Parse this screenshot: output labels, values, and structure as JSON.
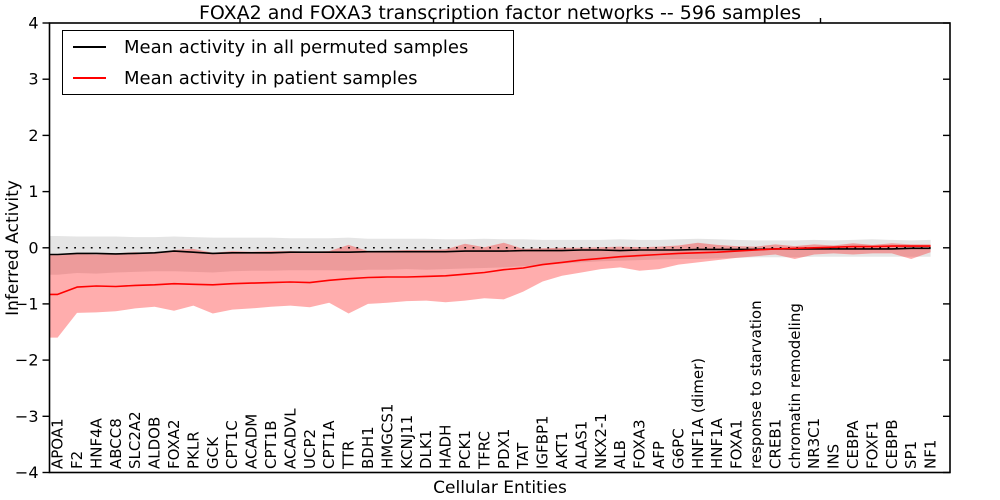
{
  "chart_data": {
    "type": "line",
    "title": "FOXA2 and FOXA3 transcription factor networks -- 596 samples",
    "xlabel": "Cellular Entities",
    "ylabel": "Inferred Activity",
    "ylim": [
      -4,
      4
    ],
    "yticks": [
      -4,
      -3,
      -2,
      -1,
      0,
      1,
      2,
      3,
      4
    ],
    "grid": false,
    "legend_position": "upper left",
    "zero_line_style": "dotted",
    "categories": [
      "APOA1",
      "F2",
      "HNF4A",
      "ABCC8",
      "SLC2A2",
      "ALDOB",
      "FOXA2",
      "PKLR",
      "GCK",
      "CPT1C",
      "ACADM",
      "CPT1B",
      "ACADVL",
      "UCP2",
      "CPT1A",
      "TTR",
      "BDH1",
      "HMGCS1",
      "KCNJ11",
      "DLK1",
      "HADH",
      "PCK1",
      "TFRC",
      "PDX1",
      "TAT",
      "IGFBP1",
      "AKT1",
      "ALAS1",
      "NKX2-1",
      "ALB",
      "FOXA3",
      "AFP",
      "G6PC",
      "HNF1A (dimer)",
      "HNF1A",
      "FOXA1",
      "response to starvation",
      "CREB1",
      "chromatin remodeling",
      "NR3C1",
      "INS",
      "CEBPA",
      "FOXF1",
      "CEBPB",
      "SP1",
      "NF1"
    ],
    "series": [
      {
        "name": "Mean activity in all permuted samples",
        "color": "#000000",
        "values": [
          -0.12,
          -0.1,
          -0.1,
          -0.11,
          -0.1,
          -0.09,
          -0.06,
          -0.08,
          -0.1,
          -0.09,
          -0.09,
          -0.09,
          -0.08,
          -0.08,
          -0.08,
          -0.08,
          -0.07,
          -0.07,
          -0.07,
          -0.07,
          -0.07,
          -0.06,
          -0.06,
          -0.06,
          -0.05,
          -0.05,
          -0.05,
          -0.04,
          -0.04,
          -0.05,
          -0.04,
          -0.04,
          -0.04,
          -0.03,
          -0.03,
          -0.03,
          -0.03,
          -0.02,
          -0.02,
          -0.02,
          -0.02,
          -0.02,
          -0.02,
          -0.02,
          -0.01,
          -0.01
        ],
        "band": {
          "upper": [
            0.21,
            0.2,
            0.2,
            0.2,
            0.19,
            0.19,
            0.2,
            0.19,
            0.18,
            0.18,
            0.18,
            0.18,
            0.17,
            0.17,
            0.17,
            0.18,
            0.16,
            0.16,
            0.16,
            0.16,
            0.15,
            0.15,
            0.16,
            0.15,
            0.15,
            0.14,
            0.14,
            0.14,
            0.14,
            0.15,
            0.14,
            0.14,
            0.15,
            0.16,
            0.15,
            0.14,
            0.13,
            0.13,
            0.13,
            0.14,
            0.13,
            0.14,
            0.15,
            0.14,
            0.13,
            0.14
          ],
          "lower": [
            -0.48,
            -0.45,
            -0.46,
            -0.44,
            -0.43,
            -0.42,
            -0.42,
            -0.43,
            -0.44,
            -0.42,
            -0.41,
            -0.41,
            -0.4,
            -0.4,
            -0.4,
            -0.41,
            -0.39,
            -0.39,
            -0.38,
            -0.39,
            -0.38,
            -0.37,
            -0.36,
            -0.35,
            -0.33,
            -0.31,
            -0.28,
            -0.26,
            -0.24,
            -0.23,
            -0.22,
            -0.21,
            -0.2,
            -0.2,
            -0.19,
            -0.18,
            -0.17,
            -0.17,
            -0.17,
            -0.16,
            -0.16,
            -0.16,
            -0.16,
            -0.16,
            -0.16,
            -0.16
          ],
          "fill": "#000000",
          "opacity": 0.1
        }
      },
      {
        "name": "Mean activity in patient samples",
        "color": "#ff0000",
        "values": [
          -0.83,
          -0.7,
          -0.68,
          -0.69,
          -0.67,
          -0.66,
          -0.64,
          -0.65,
          -0.66,
          -0.64,
          -0.63,
          -0.62,
          -0.61,
          -0.62,
          -0.58,
          -0.55,
          -0.53,
          -0.52,
          -0.52,
          -0.51,
          -0.5,
          -0.47,
          -0.44,
          -0.39,
          -0.36,
          -0.3,
          -0.26,
          -0.22,
          -0.19,
          -0.16,
          -0.14,
          -0.12,
          -0.1,
          -0.09,
          -0.08,
          -0.06,
          -0.04,
          -0.02,
          -0.01,
          0.0,
          0.01,
          0.02,
          0.02,
          0.03,
          0.03,
          0.03
        ],
        "band": {
          "upper": [
            -0.13,
            -0.1,
            -0.12,
            -0.1,
            -0.08,
            -0.1,
            -0.04,
            -0.02,
            -0.09,
            -0.06,
            -0.07,
            -0.06,
            -0.06,
            -0.07,
            -0.06,
            0.05,
            -0.06,
            -0.05,
            -0.04,
            -0.04,
            -0.03,
            0.07,
            0.01,
            0.09,
            -0.02,
            -0.01,
            0.0,
            0.0,
            0.01,
            0.02,
            0.01,
            0.02,
            0.04,
            0.09,
            0.05,
            0.03,
            0.02,
            0.06,
            0.03,
            0.06,
            0.04,
            0.08,
            0.05,
            0.08,
            0.06,
            0.06
          ],
          "lower": [
            -1.6,
            -1.16,
            -1.15,
            -1.13,
            -1.08,
            -1.05,
            -1.12,
            -1.03,
            -1.17,
            -1.1,
            -1.08,
            -1.05,
            -1.03,
            -1.06,
            -0.98,
            -1.17,
            -1.0,
            -0.98,
            -0.95,
            -0.94,
            -0.97,
            -0.94,
            -0.9,
            -0.92,
            -0.78,
            -0.6,
            -0.5,
            -0.44,
            -0.38,
            -0.35,
            -0.41,
            -0.38,
            -0.3,
            -0.26,
            -0.22,
            -0.18,
            -0.15,
            -0.12,
            -0.2,
            -0.12,
            -0.1,
            -0.12,
            -0.1,
            -0.1,
            -0.2,
            -0.08
          ],
          "fill": "#ff0000",
          "opacity": 0.32
        }
      }
    ]
  }
}
